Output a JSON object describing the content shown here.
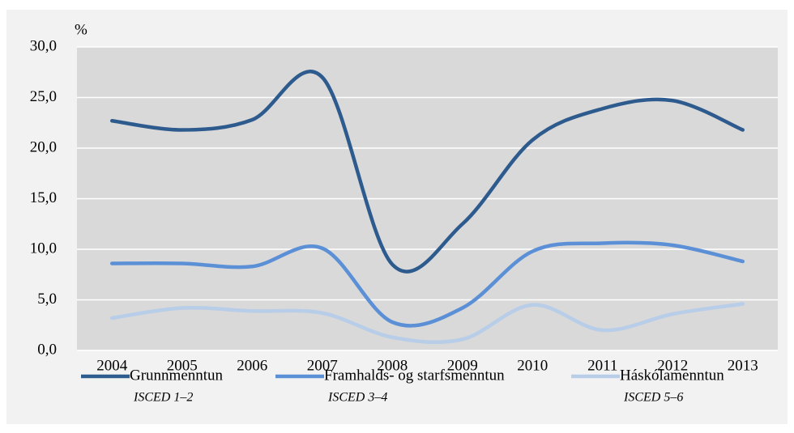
{
  "chart_data": {
    "type": "line",
    "y_unit": "%",
    "categories": [
      "2004",
      "2005",
      "2006",
      "2007",
      "2008",
      "2009",
      "2010",
      "2011",
      "2012",
      "2013"
    ],
    "series": [
      {
        "name": "Grunnmenntun",
        "note": "ISCED 1–2",
        "color": "#2e5b8e",
        "values": [
          22.7,
          21.8,
          22.8,
          27.0,
          8.5,
          12.5,
          20.8,
          23.9,
          24.7,
          21.8
        ]
      },
      {
        "name": "Framhalds- og starfsmenntun",
        "note": "ISCED 3–4",
        "color": "#5b8fd6",
        "values": [
          8.6,
          8.6,
          8.3,
          10.1,
          2.8,
          4.2,
          9.8,
          10.6,
          10.4,
          8.8
        ]
      },
      {
        "name": "Háskólamenntun",
        "note": "ISCED 5–6",
        "color": "#b7cde8",
        "values": [
          3.2,
          4.2,
          3.9,
          3.7,
          1.3,
          1.1,
          4.5,
          2.0,
          3.6,
          4.6
        ]
      }
    ],
    "ylim": [
      0,
      30
    ],
    "yticks": [
      {
        "value": 0,
        "label": "0,0"
      },
      {
        "value": 5,
        "label": "5,0"
      },
      {
        "value": 10,
        "label": "10,0"
      },
      {
        "value": 15,
        "label": "15,0"
      },
      {
        "value": 20,
        "label": "20,0"
      },
      {
        "value": 25,
        "label": "25,0"
      },
      {
        "value": 30,
        "label": "30,0"
      }
    ],
    "grid": true,
    "legend": "bottom"
  }
}
